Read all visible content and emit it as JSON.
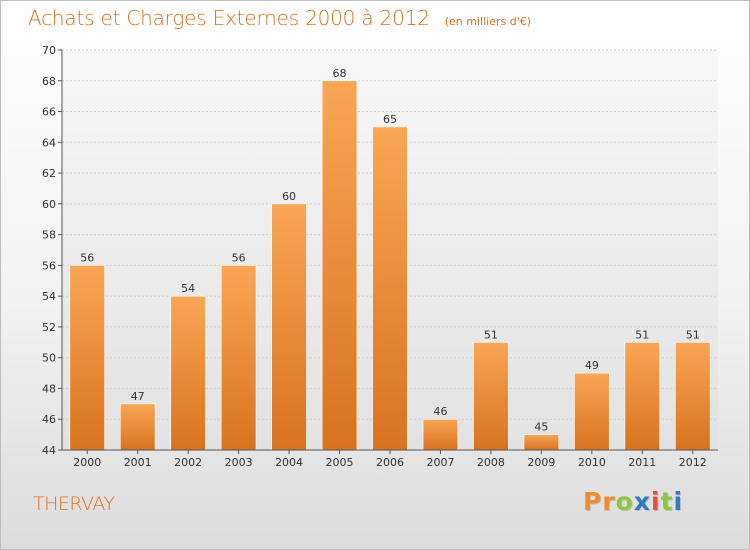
{
  "header": {
    "title": "Achats et Charges Externes 2000 à 2012",
    "subtitle": "(en milliers d'€)"
  },
  "footer": {
    "commune": "THERVAY",
    "logo_letters": [
      "P",
      "r",
      "o",
      "x",
      "i",
      "t",
      "i"
    ]
  },
  "colors": {
    "accent": "#E0701F",
    "bar_top": "#F9A656",
    "bar_bottom": "#D8731F",
    "logo_letters": [
      "#F18A2C",
      "#F18A2C",
      "#8DC63F",
      "#2E7BBF",
      "#E94B3C",
      "#8DC63F",
      "#2E7BBF"
    ]
  },
  "chart_data": {
    "type": "bar",
    "title": "Achats et Charges Externes 2000 à 2012",
    "subtitle": "(en milliers d'€)",
    "categories": [
      "2000",
      "2001",
      "2002",
      "2003",
      "2004",
      "2005",
      "2006",
      "2007",
      "2008",
      "2009",
      "2010",
      "2011",
      "2012"
    ],
    "values": [
      56,
      47,
      54,
      56,
      60,
      68,
      65,
      46,
      51,
      45,
      49,
      51,
      51
    ],
    "ylim": [
      44,
      70
    ],
    "yticks": [
      44,
      46,
      48,
      50,
      52,
      54,
      56,
      58,
      60,
      62,
      64,
      66,
      68,
      70
    ],
    "grid": true,
    "legend": "none"
  }
}
